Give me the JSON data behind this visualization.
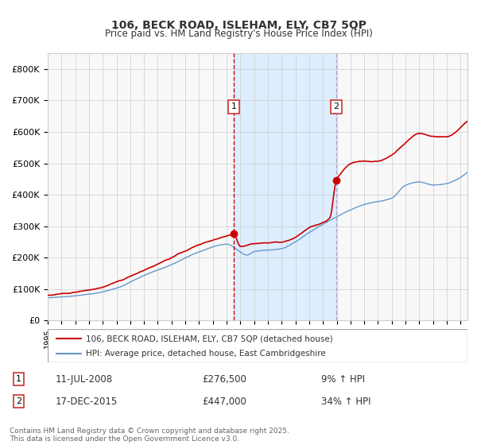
{
  "title1": "106, BECK ROAD, ISLEHAM, ELY, CB7 5QP",
  "title2": "Price paid vs. HM Land Registry's House Price Index (HPI)",
  "ylabel": "",
  "xlabel": "",
  "ylim": [
    0,
    850000
  ],
  "xlim_start": 1995.0,
  "xlim_end": 2025.5,
  "red_line_color": "#cc0000",
  "blue_line_color": "#6699cc",
  "sale1_date": 2008.53,
  "sale1_price": 276500,
  "sale1_label": "1",
  "sale2_date": 2015.96,
  "sale2_price": 447000,
  "sale2_label": "2",
  "shade_start": 2008.53,
  "shade_end": 2015.96,
  "shade_color": "#ddeeff",
  "vline1_color": "#cc0000",
  "vline2_color": "#aaaacc",
  "background_color": "#f8f8f8",
  "grid_color": "#cccccc",
  "legend_label1": "106, BECK ROAD, ISLEHAM, ELY, CB7 5QP (detached house)",
  "legend_label2": "HPI: Average price, detached house, East Cambridgeshire",
  "annotation1_date": "11-JUL-2008",
  "annotation1_price": "£276,500",
  "annotation1_hpi": "9% ↑ HPI",
  "annotation2_date": "17-DEC-2015",
  "annotation2_price": "£447,000",
  "annotation2_hpi": "34% ↑ HPI",
  "footnote": "Contains HM Land Registry data © Crown copyright and database right 2025.\nThis data is licensed under the Open Government Licence v3.0.",
  "yticks": [
    0,
    100000,
    200000,
    300000,
    400000,
    500000,
    600000,
    700000,
    800000
  ],
  "ytick_labels": [
    "£0",
    "£100K",
    "£200K",
    "£300K",
    "£400K",
    "£500K",
    "£600K",
    "£700K",
    "£800K"
  ]
}
